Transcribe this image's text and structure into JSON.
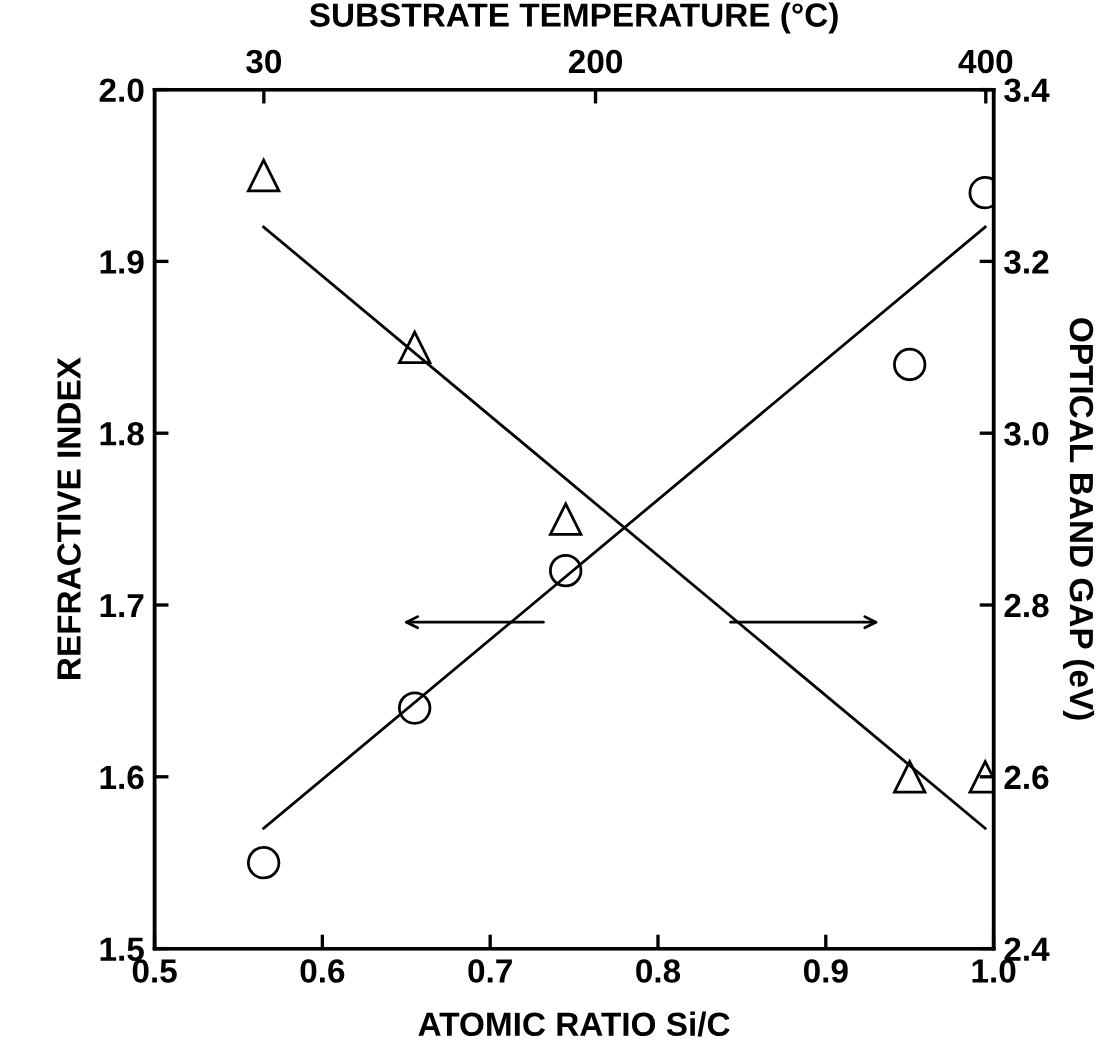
{
  "chart_data": {
    "type": "scatter",
    "xlabel": "ATOMIC RATIO Si/C",
    "ylabel": "REFRACTIVE INDEX",
    "y2label": "OPTICAL BAND GAP (eV)",
    "x2label": "SUBSTRATE TEMPERATURE (°C)",
    "xlim": [
      0.5,
      1.0
    ],
    "xticks": [
      0.5,
      0.6,
      0.7,
      0.8,
      0.9,
      {
        "value": 1,
        "label": "1.0"
      }
    ],
    "ylim": [
      1.5,
      2.0
    ],
    "yticks": [
      1.5,
      1.6,
      1.7,
      1.8,
      1.9,
      {
        "value": 2,
        "label": "2.0"
      }
    ],
    "y2lim": [
      2.4,
      3.4
    ],
    "y2ticks": [
      2.4,
      2.6,
      2.8,
      {
        "value": 3,
        "label": "3.0"
      },
      3.2,
      3.4
    ],
    "x2lim": [
      -26,
      404
    ],
    "x2ticks": [
      30,
      200,
      400
    ],
    "grid": false,
    "legend": false,
    "series": [
      {
        "marker": "circle",
        "color": "#000000",
        "x": [
          0.565,
          0.655,
          0.745,
          0.95,
          0.995
        ],
        "values": [
          1.55,
          1.64,
          1.72,
          1.84,
          1.94
        ]
      },
      {
        "marker": "triangle",
        "color": "#000000",
        "axis": "y2",
        "x": [
          0.565,
          0.655,
          0.745,
          0.95,
          0.995
        ],
        "values": [
          3.3,
          3.1,
          2.9,
          2.6,
          2.6
        ]
      },
      {
        "type": "line",
        "marker": "none",
        "line_style": "solid",
        "color": "#000000",
        "x": [
          0.565,
          0.995
        ],
        "values": [
          1.57,
          1.92
        ]
      },
      {
        "type": "line",
        "marker": "none",
        "line_style": "solid",
        "color": "#000000",
        "axis": "y2",
        "x": [
          0.565,
          0.995
        ],
        "values": [
          3.24,
          2.54
        ]
      }
    ]
  }
}
